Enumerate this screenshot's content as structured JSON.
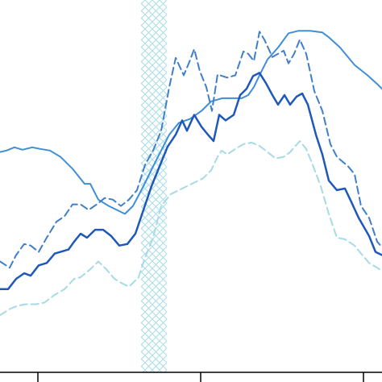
{
  "chart_data": {
    "type": "line",
    "title": "",
    "xlabel": "",
    "ylabel": "",
    "xlim": [
      0,
      474
    ],
    "ylim": [
      0,
      470
    ],
    "grid": false,
    "shaded_band": {
      "x_start": 175,
      "x_end": 207,
      "pattern": "crosshatch",
      "color": "#a8dde6"
    },
    "x_axis_ticks": [
      47,
      249,
      451
    ],
    "series": [
      {
        "key": "solid_light",
        "style": "solid",
        "color": "#3f8fd8",
        "width": 2,
        "points": [
          [
            0,
            278
          ],
          [
            8,
            280
          ],
          [
            18,
            284
          ],
          [
            28,
            281
          ],
          [
            40,
            284
          ],
          [
            50,
            282
          ],
          [
            62,
            280
          ],
          [
            75,
            272
          ],
          [
            90,
            257
          ],
          [
            105,
            238
          ],
          [
            112,
            238
          ],
          [
            122,
            218
          ],
          [
            135,
            210
          ],
          [
            145,
            205
          ],
          [
            155,
            200
          ],
          [
            165,
            210
          ],
          [
            178,
            235
          ],
          [
            190,
            260
          ],
          [
            200,
            280
          ],
          [
            210,
            300
          ],
          [
            222,
            315
          ],
          [
            236,
            320
          ],
          [
            250,
            330
          ],
          [
            262,
            342
          ],
          [
            276,
            346
          ],
          [
            290,
            346
          ],
          [
            300,
            346
          ],
          [
            308,
            350
          ],
          [
            315,
            360
          ],
          [
            322,
            375
          ],
          [
            332,
            395
          ],
          [
            345,
            410
          ],
          [
            358,
            428
          ],
          [
            370,
            431
          ],
          [
            385,
            431
          ],
          [
            400,
            429
          ],
          [
            408,
            423
          ],
          [
            422,
            410
          ],
          [
            440,
            388
          ],
          [
            456,
            375
          ],
          [
            468,
            364
          ],
          [
            474,
            358
          ]
        ]
      },
      {
        "key": "dashed_blue",
        "style": "dashed",
        "color": "#3f7fc8",
        "width": 2,
        "points": [
          [
            0,
            140
          ],
          [
            12,
            132
          ],
          [
            20,
            148
          ],
          [
            30,
            162
          ],
          [
            38,
            160
          ],
          [
            48,
            152
          ],
          [
            58,
            170
          ],
          [
            70,
            190
          ],
          [
            80,
            197
          ],
          [
            90,
            212
          ],
          [
            100,
            212
          ],
          [
            110,
            205
          ],
          [
            120,
            212
          ],
          [
            130,
            220
          ],
          [
            140,
            218
          ],
          [
            150,
            210
          ],
          [
            160,
            218
          ],
          [
            170,
            230
          ],
          [
            180,
            262
          ],
          [
            190,
            280
          ],
          [
            200,
            305
          ],
          [
            210,
            360
          ],
          [
            218,
            397
          ],
          [
            228,
            375
          ],
          [
            235,
            392
          ],
          [
            241,
            408
          ],
          [
            248,
            380
          ],
          [
            256,
            360
          ],
          [
            263,
            330
          ],
          [
            270,
            376
          ],
          [
            282,
            372
          ],
          [
            292,
            375
          ],
          [
            302,
            405
          ],
          [
            308,
            402
          ],
          [
            315,
            393
          ],
          [
            322,
            430
          ],
          [
            328,
            420
          ],
          [
            338,
            398
          ],
          [
            345,
            402
          ],
          [
            352,
            406
          ],
          [
            358,
            390
          ],
          [
            365,
            402
          ],
          [
            372,
            420
          ],
          [
            380,
            402
          ],
          [
            390,
            355
          ],
          [
            400,
            330
          ],
          [
            410,
            288
          ],
          [
            418,
            272
          ],
          [
            432,
            260
          ],
          [
            440,
            250
          ],
          [
            448,
            210
          ],
          [
            458,
            195
          ],
          [
            468,
            165
          ],
          [
            474,
            158
          ]
        ]
      },
      {
        "key": "solid_dark",
        "style": "solid",
        "color": "#1f58bb",
        "width": 2.5,
        "points": [
          [
            0,
            105
          ],
          [
            10,
            105
          ],
          [
            20,
            118
          ],
          [
            30,
            125
          ],
          [
            38,
            122
          ],
          [
            48,
            135
          ],
          [
            58,
            138
          ],
          [
            68,
            150
          ],
          [
            75,
            152
          ],
          [
            85,
            155
          ],
          [
            92,
            165
          ],
          [
            100,
            175
          ],
          [
            108,
            170
          ],
          [
            118,
            180
          ],
          [
            128,
            180
          ],
          [
            138,
            172
          ],
          [
            148,
            160
          ],
          [
            158,
            162
          ],
          [
            168,
            175
          ],
          [
            178,
            205
          ],
          [
            188,
            235
          ],
          [
            198,
            260
          ],
          [
            208,
            285
          ],
          [
            218,
            300
          ],
          [
            226,
            318
          ],
          [
            232,
            305
          ],
          [
            241,
            325
          ],
          [
            250,
            310
          ],
          [
            258,
            300
          ],
          [
            265,
            292
          ],
          [
            272,
            325
          ],
          [
            280,
            318
          ],
          [
            290,
            325
          ],
          [
            298,
            350
          ],
          [
            306,
            358
          ],
          [
            314,
            374
          ],
          [
            322,
            378
          ],
          [
            330,
            365
          ],
          [
            338,
            350
          ],
          [
            345,
            338
          ],
          [
            353,
            350
          ],
          [
            360,
            338
          ],
          [
            368,
            348
          ],
          [
            375,
            352
          ],
          [
            382,
            338
          ],
          [
            392,
            300
          ],
          [
            400,
            275
          ],
          [
            408,
            242
          ],
          [
            418,
            230
          ],
          [
            428,
            232
          ],
          [
            436,
            215
          ],
          [
            445,
            195
          ],
          [
            458,
            172
          ],
          [
            466,
            152
          ],
          [
            474,
            148
          ]
        ]
      },
      {
        "key": "dashed_light",
        "style": "dashed",
        "color": "#a6dbe6",
        "width": 2,
        "points": [
          [
            0,
            72
          ],
          [
            12,
            80
          ],
          [
            22,
            84
          ],
          [
            32,
            86
          ],
          [
            45,
            86
          ],
          [
            55,
            88
          ],
          [
            68,
            98
          ],
          [
            80,
            105
          ],
          [
            92,
            118
          ],
          [
            100,
            120
          ],
          [
            112,
            130
          ],
          [
            122,
            140
          ],
          [
            132,
            130
          ],
          [
            142,
            118
          ],
          [
            152,
            112
          ],
          [
            160,
            108
          ],
          [
            172,
            120
          ],
          [
            180,
            145
          ],
          [
            190,
            170
          ],
          [
            200,
            210
          ],
          [
            212,
            225
          ],
          [
            222,
            230
          ],
          [
            232,
            235
          ],
          [
            242,
            240
          ],
          [
            252,
            245
          ],
          [
            262,
            255
          ],
          [
            270,
            272
          ],
          [
            275,
            280
          ],
          [
            282,
            275
          ],
          [
            292,
            282
          ],
          [
            302,
            288
          ],
          [
            312,
            290
          ],
          [
            322,
            286
          ],
          [
            332,
            278
          ],
          [
            342,
            270
          ],
          [
            352,
            272
          ],
          [
            360,
            278
          ],
          [
            372,
            292
          ],
          [
            380,
            282
          ],
          [
            388,
            262
          ],
          [
            398,
            235
          ],
          [
            408,
            200
          ],
          [
            418,
            170
          ],
          [
            428,
            168
          ],
          [
            440,
            160
          ],
          [
            448,
            150
          ],
          [
            458,
            138
          ],
          [
            468,
            132
          ],
          [
            474,
            128
          ]
        ]
      }
    ]
  }
}
